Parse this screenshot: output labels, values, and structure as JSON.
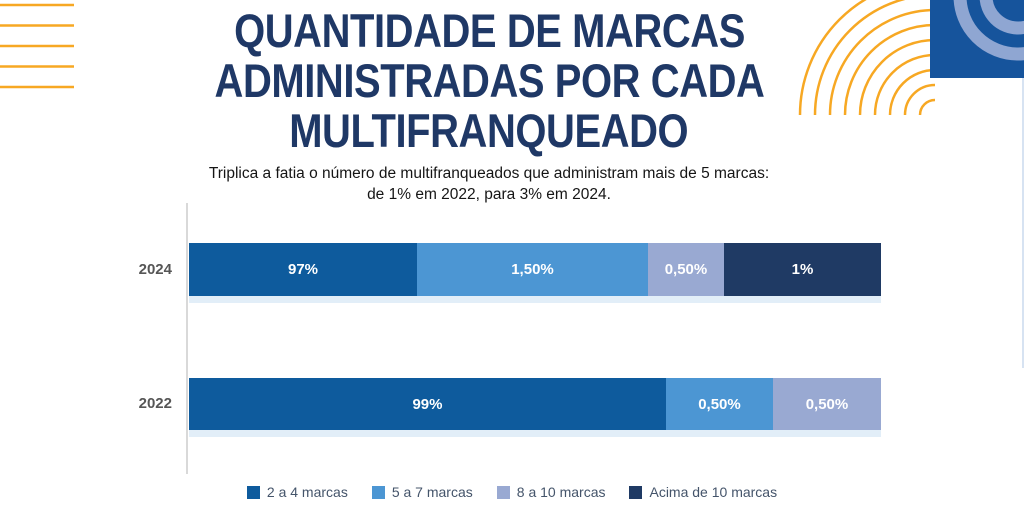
{
  "title": {
    "lines": [
      "QUANTIDADE DE MARCAS",
      "ADMINISTRADAS POR CADA",
      "MULTIFRANQUEADO"
    ],
    "color": "#1f3866"
  },
  "subtitle": {
    "lines": [
      "Triplica a fatia o número de multifranqueados que administram mais de 5 marcas:",
      "de 1% em 2022, para 3% em 2024."
    ],
    "color": "#151515"
  },
  "chart_data": {
    "type": "bar",
    "orientation": "horizontal-stacked",
    "categories": [
      "2024",
      "2022"
    ],
    "series": [
      {
        "name": "2 a 4 marcas",
        "color": "#0e5b9d",
        "values": [
          97,
          99
        ]
      },
      {
        "name": "5 a 7 marcas",
        "color": "#4c96d3",
        "values": [
          1.5,
          0.5
        ]
      },
      {
        "name": "8 a 10 marcas",
        "color": "#99a9d2",
        "values": [
          0.5,
          0.5
        ]
      },
      {
        "name": "Acima de 10 marcas",
        "color": "#1f3a64",
        "values": [
          1,
          0
        ]
      }
    ],
    "value_labels": [
      [
        "97%",
        "1,50%",
        "0,50%",
        "1%"
      ],
      [
        "99%",
        "0,50%",
        "0,50%"
      ]
    ],
    "display_widths_pct": [
      [
        32.95,
        33.38,
        10.98,
        22.69
      ],
      [
        68.93,
        15.46,
        15.61
      ]
    ],
    "note": "segment widths in the source image are not proportional to values",
    "legend_position": "bottom",
    "axis_line_color": "#d9d9d9",
    "category_label_color": "#565656",
    "legend_text_color": "#44546a",
    "bar_label_color": "#ffffff"
  },
  "decorations": {
    "yellow_line_color": "#f7a823",
    "corner_square_color": "#16549c",
    "corner_arc_color": "#8fa6d2",
    "right_edge_line_color": "#cddcef"
  }
}
